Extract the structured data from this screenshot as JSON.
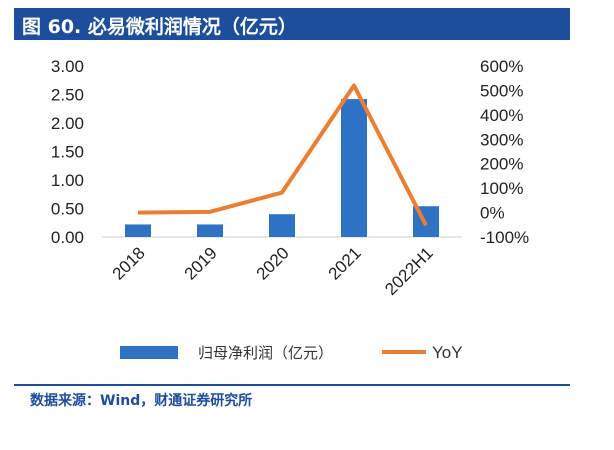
{
  "header": {
    "title": "图 60. 必易微利润情况（亿元）"
  },
  "footer": {
    "source": "数据来源：Wind，财通证券研究所"
  },
  "colors": {
    "title_bg": "#1d4e9e",
    "bar": "#2e72c6",
    "line": "#ed7d31",
    "source_text": "#1d4e9e"
  },
  "chart_data": {
    "type": "bar",
    "categories": [
      "2018",
      "2019",
      "2020",
      "2021",
      "2022H1"
    ],
    "series": [
      {
        "name": "归母净利润（亿元）",
        "type": "bar",
        "axis": "left",
        "values": [
          0.22,
          0.22,
          0.4,
          2.42,
          0.54
        ]
      },
      {
        "name": "YoY",
        "type": "line",
        "axis": "right",
        "values": [
          0,
          3,
          82,
          520,
          -52
        ]
      }
    ],
    "y_left": {
      "ylim": [
        0,
        3
      ],
      "ticks": [
        "0.00",
        "0.50",
        "1.00",
        "1.50",
        "2.00",
        "2.50",
        "3.00"
      ]
    },
    "y_right": {
      "ylim": [
        -100,
        600
      ],
      "ticks": [
        "-100%",
        "0%",
        "100%",
        "200%",
        "300%",
        "400%",
        "500%",
        "600%"
      ]
    },
    "grid": false,
    "legend_position": "bottom"
  }
}
